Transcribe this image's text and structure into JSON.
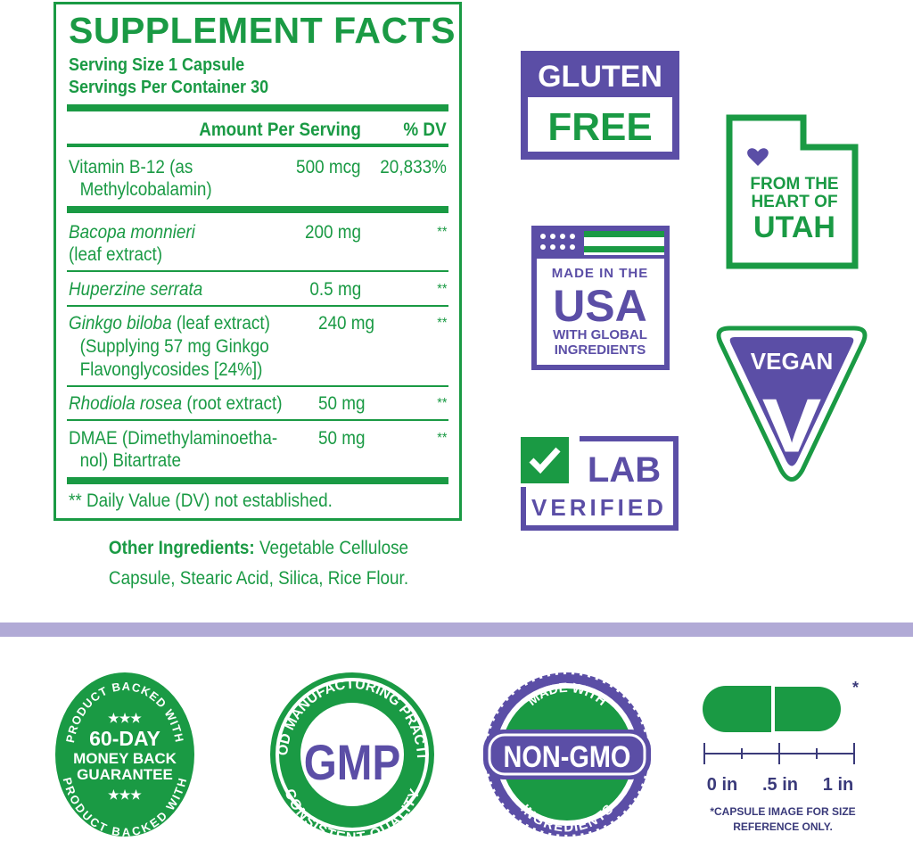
{
  "facts": {
    "title": "SUPPLEMENT FACTS",
    "serving_size": "Serving Size 1 Capsule",
    "servings_per_container": "Servings Per Container 30",
    "header_amount": "Amount Per Serving",
    "header_dv": "% DV",
    "rows": [
      {
        "name": "Vitamin B-12 (as",
        "name2": "Methylcobalamin)",
        "amount": "500 mcg",
        "dv": "20,833%"
      },
      {
        "name_italic": "Bacopa monnieri",
        "name2": "(leaf extract)",
        "amount": "200 mg",
        "dv": "**"
      },
      {
        "name_italic": "Huperzine serrata",
        "amount": "0.5 mg",
        "dv": "**"
      },
      {
        "name_italic": "Ginkgo biloba",
        "name_rest": " (leaf extract)",
        "name2": "(Supplying 57 mg Ginkgo",
        "name3": "Flavonglycosides [24%])",
        "amount": "240 mg",
        "dv": "**"
      },
      {
        "name_italic": "Rhodiola rosea",
        "name_rest": " (root extract)",
        "amount": "50 mg",
        "dv": "**"
      },
      {
        "name": "DMAE (Dimethylaminoetha-",
        "name2": "nol) Bitartrate",
        "amount": "50 mg",
        "dv": "**"
      }
    ],
    "footnote": "** Daily Value (DV) not established.",
    "other_label": "Other Ingredients:",
    "other_text1": " Vegetable Cellulose",
    "other_text2": "Capsule, Stearic Acid, Silica, Rice Flour."
  },
  "badges": {
    "gluten": {
      "top": "GLUTEN",
      "bottom": "FREE"
    },
    "utah": {
      "l1": "FROM THE",
      "l2": "HEART OF",
      "l3": "UTAH"
    },
    "usa": {
      "l1": "MADE IN THE",
      "l2": "USA",
      "l3": "WITH GLOBAL",
      "l4": "INGREDIENTS"
    },
    "vegan": {
      "label": "VEGAN",
      "letter": "V"
    },
    "lab": {
      "l1": "LAB",
      "l2": "VERIFIED"
    },
    "money": {
      "arc_top": "PRODUCT BACKED WITH",
      "arc_bottom": "PRODUCT BACKED WITH",
      "stars": "★★★",
      "l1": "60-DAY",
      "l2": "MONEY BACK",
      "l3": "GUARANTEE"
    },
    "gmp": {
      "arc_top": "GOOD MANUFACTURING PRACTICE",
      "arc_bottom": "CONSISTENT QUALITY",
      "center": "GMP"
    },
    "nongmo": {
      "arc_top": "MADE WITH",
      "arc_bottom": "INGREDIENTS",
      "center": "NON-GMO"
    }
  },
  "capsule": {
    "asterisk": "*",
    "ticks": [
      "0 in",
      ".5 in",
      "1 in"
    ],
    "note1": "*CAPSULE IMAGE FOR SIZE",
    "note2": "REFERENCE ONLY."
  },
  "colors": {
    "green": "#1a9a44",
    "purple": "#5b4ea6",
    "band": "#b1aad6",
    "navy": "#3a3a7a"
  }
}
